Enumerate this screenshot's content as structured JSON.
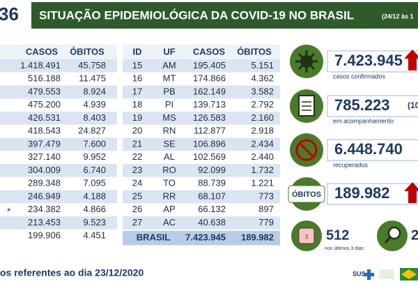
{
  "header": {
    "number": "36",
    "title": "SITUAÇÃO EPIDEMIOLÓGICA DA COVID-19 NO BRASIL",
    "date": "(24/12 às 1"
  },
  "left_table": {
    "columns": [
      "CASOS",
      "ÓBITOS"
    ],
    "rows": [
      {
        "casos": "1.418.491",
        "obitos": "45.758"
      },
      {
        "casos": "516.188",
        "obitos": "11.475"
      },
      {
        "casos": "479.553",
        "obitos": "8.924"
      },
      {
        "casos": "475.200",
        "obitos": "4.939"
      },
      {
        "casos": "426.531",
        "obitos": "8.403"
      },
      {
        "casos": "418.543",
        "obitos": "24.827"
      },
      {
        "casos": "397.479",
        "obitos": "7.600"
      },
      {
        "casos": "327.140",
        "obitos": "9.952"
      },
      {
        "casos": "304.009",
        "obitos": "6.740"
      },
      {
        "casos": "289.348",
        "obitos": "7.095"
      },
      {
        "casos": "246.949",
        "obitos": "4.188"
      },
      {
        "mark": "*",
        "casos": "234.382",
        "obitos": "4.866"
      },
      {
        "casos": "213.453",
        "obitos": "9.523"
      },
      {
        "casos": "199.906",
        "obitos": "4.451"
      }
    ]
  },
  "right_table": {
    "columns": [
      "ID",
      "UF",
      "CASOS",
      "ÓBITOS"
    ],
    "rows": [
      [
        "15",
        "AM",
        "195.405",
        "5.151"
      ],
      [
        "16",
        "MT",
        "174.866",
        "4.362"
      ],
      [
        "17",
        "PB",
        "162.149",
        "3.582"
      ],
      [
        "18",
        "PI",
        "139.713",
        "2.792"
      ],
      [
        "19",
        "MS",
        "126.583",
        "2.160"
      ],
      [
        "20",
        "RN",
        "112.877",
        "2.918"
      ],
      [
        "21",
        "SE",
        "106.896",
        "2.434"
      ],
      [
        "22",
        "AL",
        "102.569",
        "2.440"
      ],
      [
        "23",
        "RO",
        "92.099",
        "1.732"
      ],
      [
        "24",
        "TO",
        "88.739",
        "1.221"
      ],
      [
        "25",
        "RR",
        "68.107",
        "773"
      ],
      [
        "26",
        "AP",
        "66.132",
        "897"
      ],
      [
        "27",
        "AC",
        "40.638",
        "779"
      ]
    ],
    "total": [
      "BRASIL",
      "7.423.945",
      "189.982"
    ]
  },
  "stats": [
    {
      "value": "7.423.945",
      "label": "casos confirmados"
    },
    {
      "value": "785.223",
      "extra": "(10",
      "label": "em acompanhamento"
    },
    {
      "value": "6.448.740",
      "label": "recuperados"
    },
    {
      "badge": "ÓBITOS",
      "value": "189.982"
    }
  ],
  "bottom_stats": [
    {
      "icon": "3",
      "value": "512",
      "label": "nos últimos 3 dias"
    },
    {
      "value": "2"
    }
  ],
  "footer": {
    "note": "os referentes ao dia 23/12/2020",
    "logo": "SUS"
  }
}
